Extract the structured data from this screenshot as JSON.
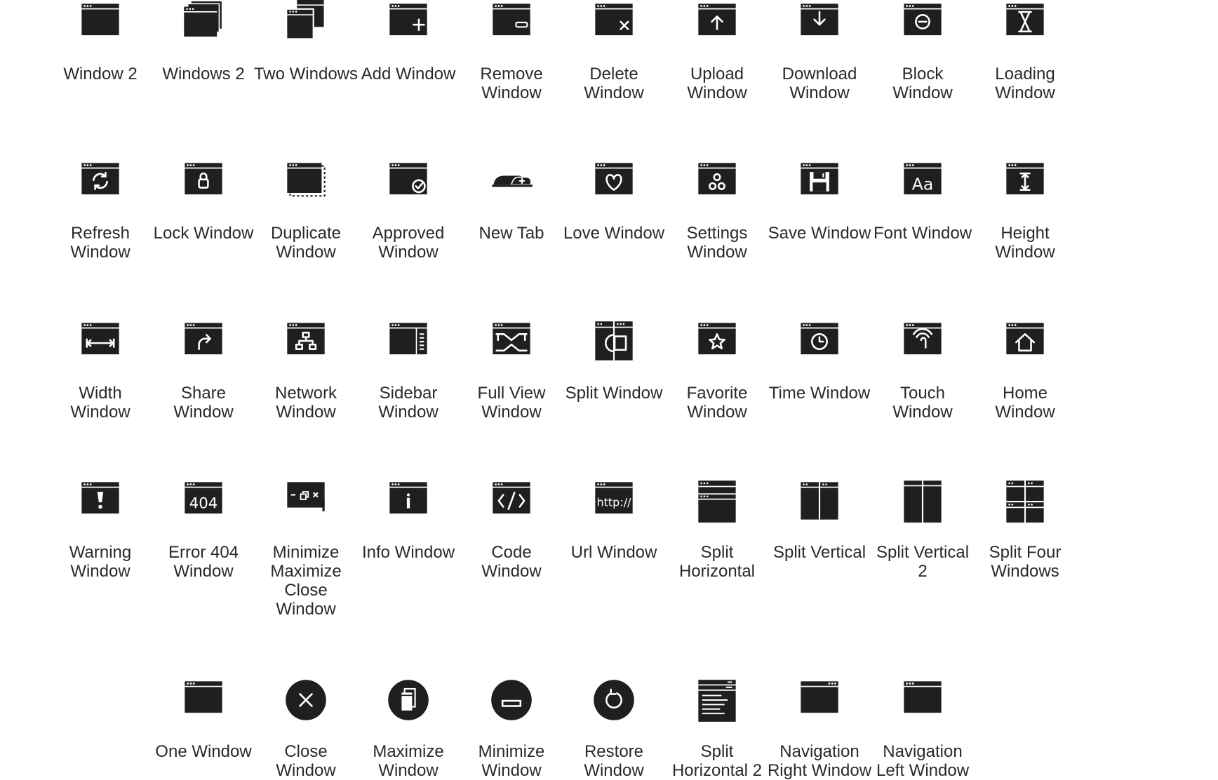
{
  "icons": [
    {
      "name": "window-2-icon",
      "label": "Window 2",
      "glyph": "plain"
    },
    {
      "name": "windows-2-icon",
      "label": "Windows 2",
      "glyph": "stack"
    },
    {
      "name": "two-windows-icon",
      "label": "Two Windows",
      "glyph": "two"
    },
    {
      "name": "add-window-icon",
      "label": "Add Window",
      "glyph": "plus"
    },
    {
      "name": "remove-window-icon",
      "label": "Remove\nWindow",
      "glyph": "minus"
    },
    {
      "name": "delete-window-icon",
      "label": "Delete\nWindow",
      "glyph": "x"
    },
    {
      "name": "upload-window-icon",
      "label": "Upload\nWindow",
      "glyph": "up"
    },
    {
      "name": "download-window-icon",
      "label": "Download\nWindow",
      "glyph": "down"
    },
    {
      "name": "block-window-icon",
      "label": "Block\nWindow",
      "glyph": "block"
    },
    {
      "name": "loading-window-icon",
      "label": "Loading\nWindow",
      "glyph": "hourglass"
    },
    {
      "name": "refresh-window-icon",
      "label": "Refresh\nWindow",
      "glyph": "refresh"
    },
    {
      "name": "lock-window-icon",
      "label": "Lock Window",
      "glyph": "lock"
    },
    {
      "name": "duplicate-window-icon",
      "label": "Duplicate\nWindow",
      "glyph": "duplicate"
    },
    {
      "name": "approved-window-icon",
      "label": "Approved\nWindow",
      "glyph": "check"
    },
    {
      "name": "new-tab-icon",
      "label": "New Tab",
      "glyph": "newtab"
    },
    {
      "name": "love-window-icon",
      "label": "Love Window",
      "glyph": "heart"
    },
    {
      "name": "settings-window-icon",
      "label": "Settings\nWindow",
      "glyph": "gears"
    },
    {
      "name": "save-window-icon",
      "label": "Save Window",
      "glyph": "save"
    },
    {
      "name": "font-window-icon",
      "label": "Font Window",
      "glyph": "font"
    },
    {
      "name": "height-window-icon",
      "label": "Height\nWindow",
      "glyph": "height"
    },
    {
      "name": "width-window-icon",
      "label": "Width\nWindow",
      "glyph": "width"
    },
    {
      "name": "share-window-icon",
      "label": "Share\nWindow",
      "glyph": "share"
    },
    {
      "name": "network-window-icon",
      "label": "Network\nWindow",
      "glyph": "network"
    },
    {
      "name": "sidebar-window-icon",
      "label": "Sidebar\nWindow",
      "glyph": "sidebar"
    },
    {
      "name": "full-view-window-icon",
      "label": "Full View\nWindow",
      "glyph": "fullview"
    },
    {
      "name": "split-window-icon",
      "label": "Split Window",
      "glyph": "split"
    },
    {
      "name": "favorite-window-icon",
      "label": "Favorite\nWindow",
      "glyph": "star"
    },
    {
      "name": "time-window-icon",
      "label": "Time Window",
      "glyph": "clock"
    },
    {
      "name": "touch-window-icon",
      "label": "Touch\nWindow",
      "glyph": "touch"
    },
    {
      "name": "home-window-icon",
      "label": "Home\nWindow",
      "glyph": "home"
    },
    {
      "name": "warning-window-icon",
      "label": "Warning\nWindow",
      "glyph": "warning"
    },
    {
      "name": "error-404-window-icon",
      "label": "Error 404\nWindow",
      "glyph": "e404",
      "text": "404"
    },
    {
      "name": "minimize-maximize-close-window-icon",
      "label": "Minimize\nMaximize\nClose\nWindow",
      "glyph": "mmc"
    },
    {
      "name": "info-window-icon",
      "label": "Info Window",
      "glyph": "info"
    },
    {
      "name": "code-window-icon",
      "label": "Code\nWindow",
      "glyph": "code"
    },
    {
      "name": "url-window-icon",
      "label": "Url Window",
      "glyph": "url",
      "text": "http://"
    },
    {
      "name": "split-horizontal-icon",
      "label": "Split\nHorizontal",
      "glyph": "splith"
    },
    {
      "name": "split-vertical-icon",
      "label": "Split Vertical",
      "glyph": "splitv"
    },
    {
      "name": "split-vertical-2-icon",
      "label": "Split Vertical\n2",
      "glyph": "splitv2"
    },
    {
      "name": "split-four-windows-icon",
      "label": "Split Four\nWindows",
      "glyph": "four"
    },
    {
      "name": "one-window-icon",
      "label": "One Window",
      "glyph": "plain"
    },
    {
      "name": "close-window-icon",
      "label": "Close\nWindow",
      "glyph": "cclose"
    },
    {
      "name": "maximize-window-icon",
      "label": "Maximize\nWindow",
      "glyph": "cmax"
    },
    {
      "name": "minimize-window-icon",
      "label": "Minimize\nWindow",
      "glyph": "cmin"
    },
    {
      "name": "restore-window-icon",
      "label": "Restore\nWindow",
      "glyph": "crestore"
    },
    {
      "name": "split-horizontal-2-icon",
      "label": "Split\nHorizontal 2",
      "glyph": "splith2"
    },
    {
      "name": "navigation-right-window-icon",
      "label": "Navigation\nRight Window",
      "glyph": "navright"
    },
    {
      "name": "navigation-left-window-icon",
      "label": "Navigation\nLeft Window",
      "glyph": "navleft"
    }
  ],
  "colors": {
    "ink": "#1f1f1f",
    "background": "#ffffff"
  }
}
